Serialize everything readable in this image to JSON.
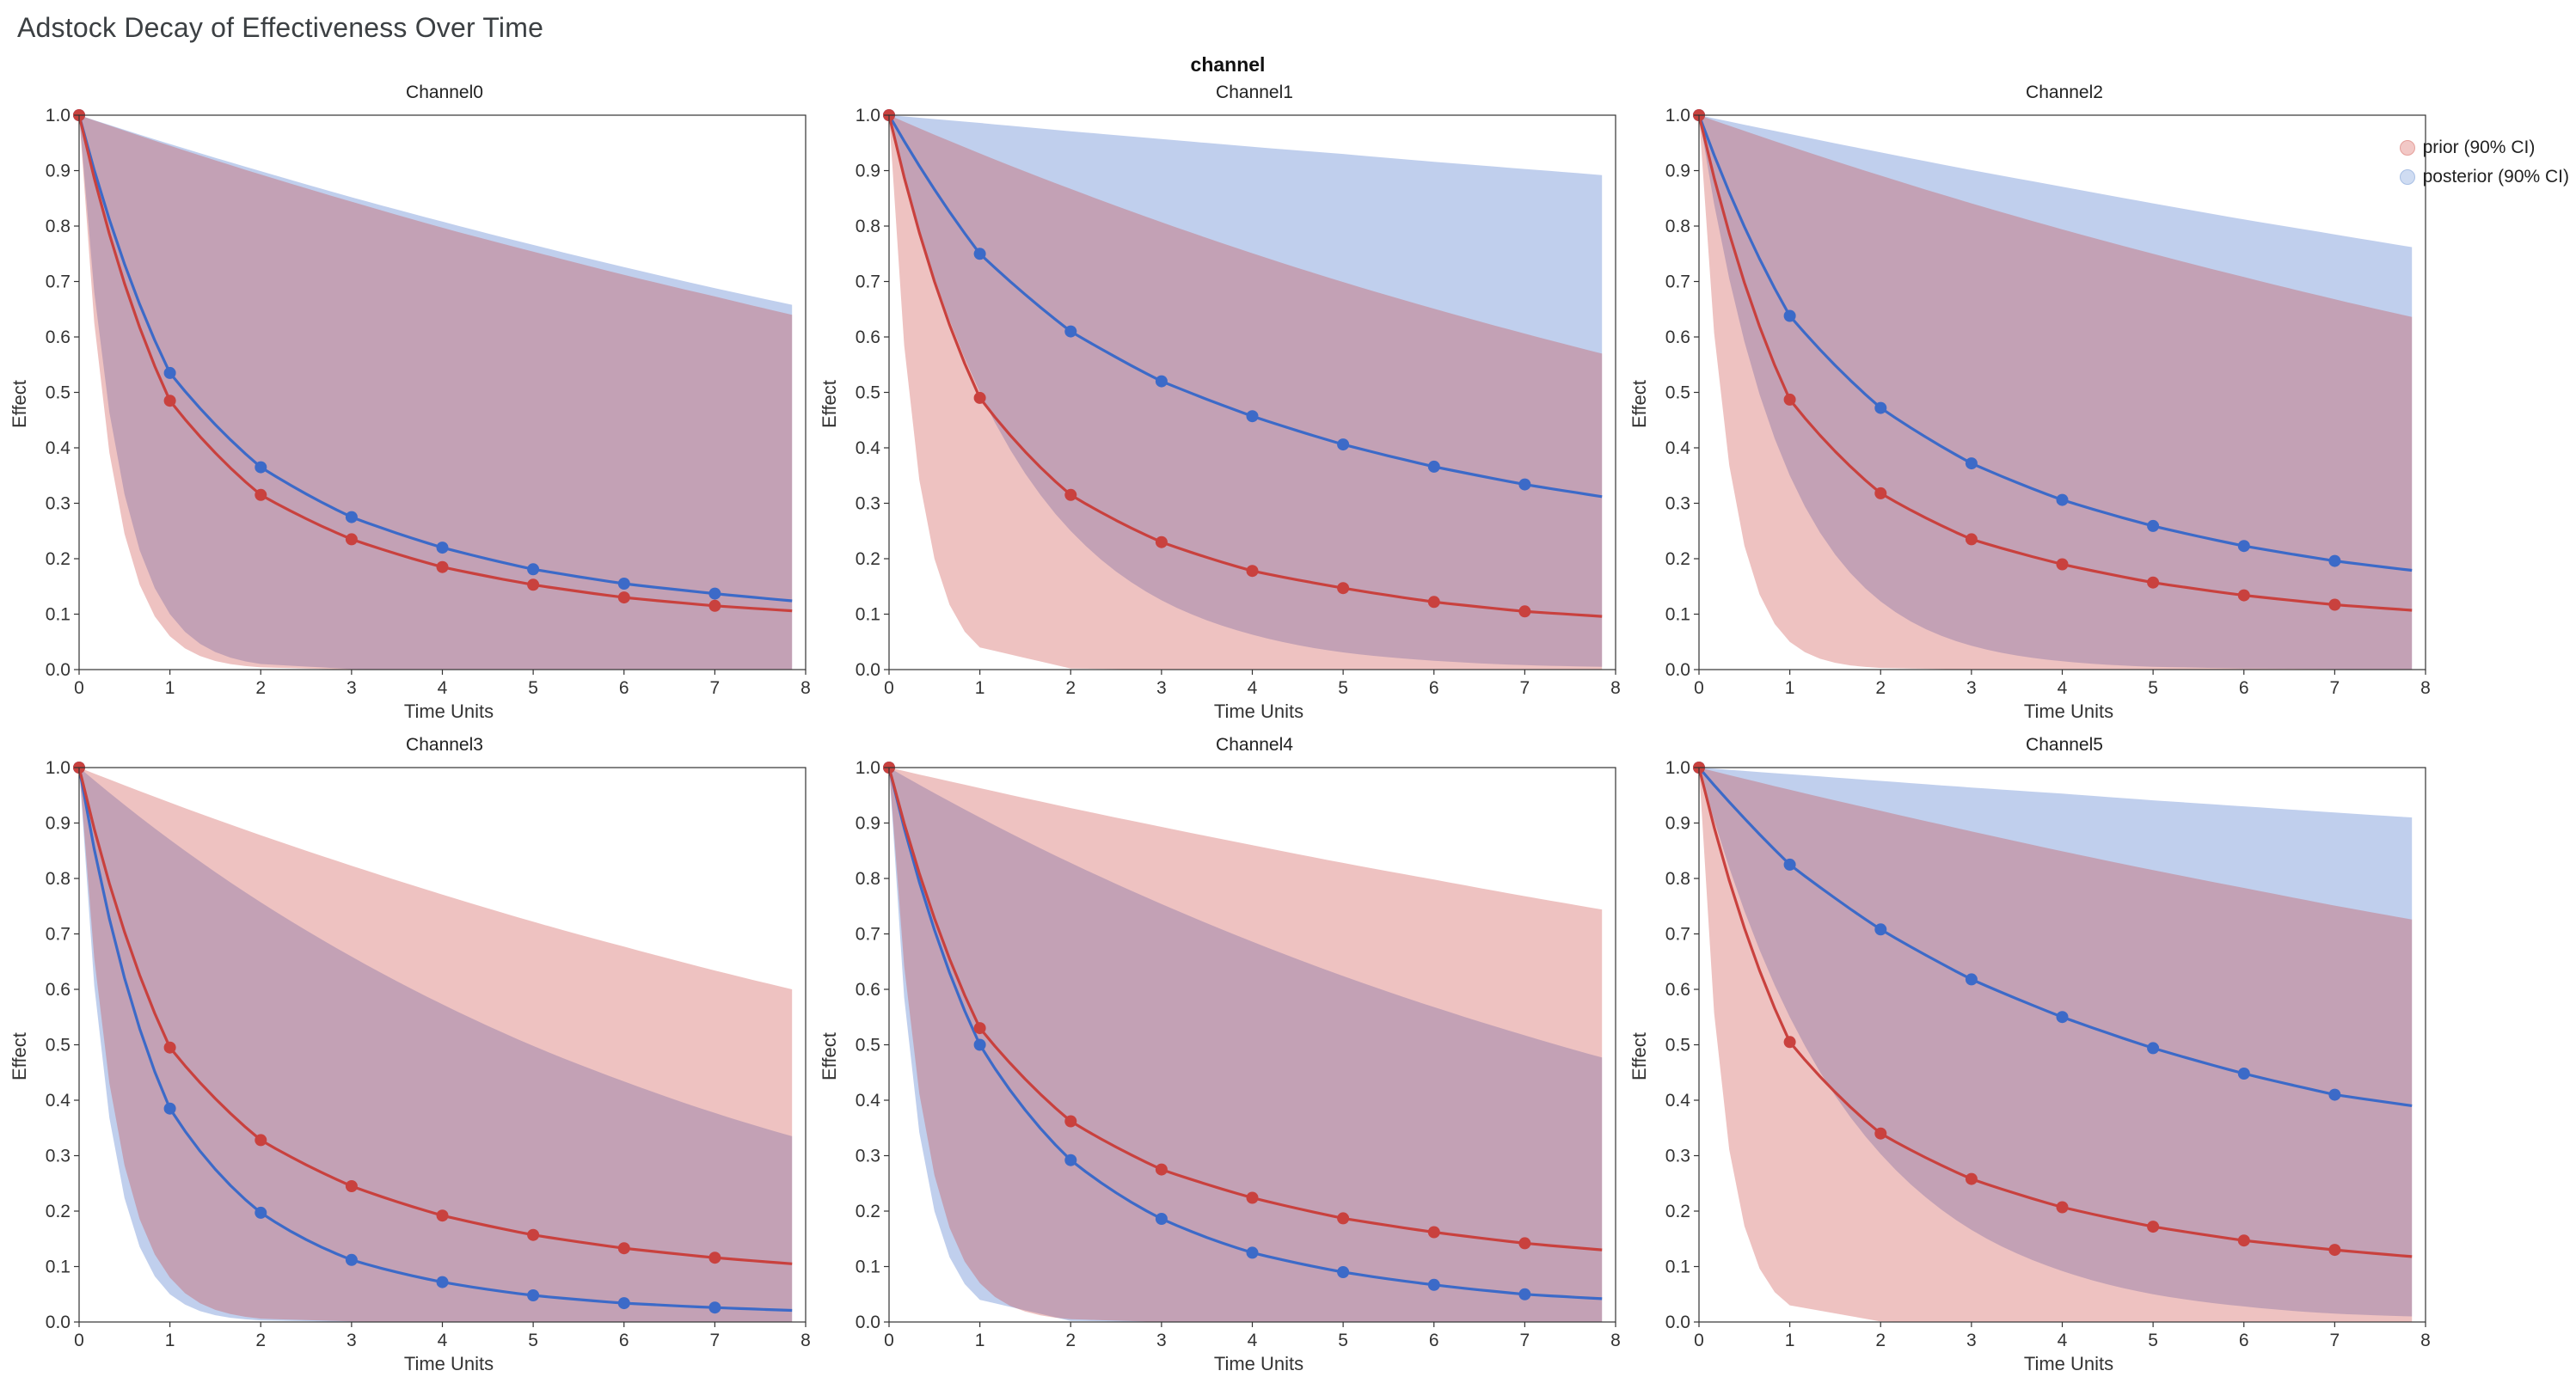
{
  "page": {
    "title": "Adstock Decay of Effectiveness Over Time",
    "facet_label": "channel"
  },
  "axes": {
    "x_label": "Time Units",
    "y_label": "Effect",
    "x_ticks": [
      0,
      1,
      2,
      3,
      4,
      5,
      6,
      7,
      8
    ],
    "y_ticks": [
      "0.0",
      "0.1",
      "0.2",
      "0.3",
      "0.4",
      "0.5",
      "0.6",
      "0.7",
      "0.8",
      "0.9",
      "1.0"
    ],
    "x_max": 8,
    "y_min": 0,
    "y_max": 1
  },
  "legend": {
    "items": [
      {
        "label": "prior (90% CI)",
        "fill": "#f2c8c6",
        "ring": "#e5a09b"
      },
      {
        "label": "posterior (90% CI)",
        "fill": "#cfdcf2",
        "ring": "#a8bfe4"
      }
    ]
  },
  "style": {
    "prior_line": "#c9413e",
    "posterior_line": "#3c6ac8",
    "fill_opacity": 0.32,
    "axis_color": "#333333",
    "frame_color": "#333333"
  },
  "chart_data": {
    "type": "line",
    "title": "Adstock Decay of Effectiveness Over Time",
    "xlabel": "Time Units",
    "ylabel": "Effect",
    "xlim": [
      0,
      8
    ],
    "ylim": [
      0,
      1
    ],
    "grid": false,
    "legend_position": "top-right",
    "x": [
      0,
      1,
      2,
      3,
      4,
      5,
      6,
      7,
      7.85
    ],
    "marker_points": 8,
    "channels": [
      {
        "name": "Channel0",
        "prior": {
          "mean": [
            1,
            0.485,
            0.315,
            0.235,
            0.185,
            0.153,
            0.13,
            0.115,
            0.106
          ],
          "upper": [
            1,
            0.945,
            0.893,
            0.844,
            0.797,
            0.754,
            0.712,
            0.673,
            0.64
          ],
          "lower": [
            1,
            0.06,
            0.004,
            0,
            0,
            0,
            0,
            0,
            0
          ]
        },
        "posterior": {
          "mean": [
            1,
            0.535,
            0.365,
            0.275,
            0.22,
            0.181,
            0.155,
            0.137,
            0.124
          ],
          "upper": [
            1,
            0.948,
            0.899,
            0.852,
            0.808,
            0.766,
            0.726,
            0.688,
            0.658
          ],
          "lower": [
            1,
            0.1,
            0.01,
            0.001,
            0,
            0,
            0,
            0,
            0
          ]
        }
      },
      {
        "name": "Channel1",
        "prior": {
          "mean": [
            1,
            0.49,
            0.315,
            0.23,
            0.178,
            0.147,
            0.122,
            0.105,
            0.096
          ],
          "upper": [
            1,
            0.931,
            0.867,
            0.807,
            0.751,
            0.699,
            0.651,
            0.606,
            0.57
          ],
          "lower": [
            1,
            0.04,
            0.002,
            0,
            0,
            0,
            0,
            0,
            0
          ]
        },
        "posterior": {
          "mean": [
            1,
            0.75,
            0.61,
            0.52,
            0.457,
            0.406,
            0.366,
            0.334,
            0.312
          ],
          "upper": [
            1,
            0.986,
            0.971,
            0.957,
            0.943,
            0.93,
            0.916,
            0.903,
            0.892
          ],
          "lower": [
            1,
            0.5,
            0.25,
            0.125,
            0.063,
            0.031,
            0.016,
            0.008,
            0.005
          ]
        }
      },
      {
        "name": "Channel2",
        "prior": {
          "mean": [
            1,
            0.487,
            0.318,
            0.235,
            0.19,
            0.157,
            0.134,
            0.117,
            0.107
          ],
          "upper": [
            1,
            0.944,
            0.891,
            0.841,
            0.794,
            0.75,
            0.708,
            0.668,
            0.636
          ],
          "lower": [
            1,
            0.05,
            0.003,
            0,
            0,
            0,
            0,
            0,
            0
          ]
        },
        "posterior": {
          "mean": [
            1,
            0.638,
            0.472,
            0.372,
            0.306,
            0.259,
            0.223,
            0.196,
            0.179
          ],
          "upper": [
            1,
            0.966,
            0.933,
            0.901,
            0.871,
            0.841,
            0.812,
            0.785,
            0.762
          ],
          "lower": [
            1,
            0.35,
            0.123,
            0.043,
            0.015,
            0.005,
            0.002,
            0.001,
            0
          ]
        }
      },
      {
        "name": "Channel3",
        "prior": {
          "mean": [
            1,
            0.495,
            0.328,
            0.245,
            0.192,
            0.157,
            0.133,
            0.116,
            0.105
          ],
          "upper": [
            1,
            0.937,
            0.878,
            0.823,
            0.771,
            0.722,
            0.677,
            0.634,
            0.6
          ],
          "lower": [
            1,
            0.08,
            0.006,
            0.001,
            0,
            0,
            0,
            0,
            0
          ]
        },
        "posterior": {
          "mean": [
            1,
            0.385,
            0.197,
            0.112,
            0.072,
            0.048,
            0.034,
            0.026,
            0.021
          ],
          "upper": [
            1,
            0.87,
            0.757,
            0.659,
            0.573,
            0.498,
            0.434,
            0.377,
            0.335
          ],
          "lower": [
            1,
            0.05,
            0.003,
            0,
            0,
            0,
            0,
            0,
            0
          ]
        }
      },
      {
        "name": "Channel4",
        "prior": {
          "mean": [
            1,
            0.53,
            0.362,
            0.275,
            0.224,
            0.187,
            0.162,
            0.142,
            0.13
          ],
          "upper": [
            1,
            0.963,
            0.927,
            0.893,
            0.86,
            0.828,
            0.798,
            0.768,
            0.744
          ],
          "lower": [
            1,
            0.07,
            0.005,
            0,
            0,
            0,
            0,
            0,
            0
          ]
        },
        "posterior": {
          "mean": [
            1,
            0.5,
            0.292,
            0.186,
            0.125,
            0.09,
            0.067,
            0.05,
            0.042
          ],
          "upper": [
            1,
            0.91,
            0.828,
            0.754,
            0.686,
            0.624,
            0.568,
            0.517,
            0.477
          ],
          "lower": [
            1,
            0.04,
            0.002,
            0,
            0,
            0,
            0,
            0,
            0
          ]
        }
      },
      {
        "name": "Channel5",
        "prior": {
          "mean": [
            1,
            0.505,
            0.34,
            0.258,
            0.207,
            0.172,
            0.147,
            0.13,
            0.118
          ],
          "upper": [
            1,
            0.96,
            0.922,
            0.885,
            0.849,
            0.815,
            0.783,
            0.751,
            0.726
          ],
          "lower": [
            1,
            0.03,
            0.001,
            0,
            0,
            0,
            0,
            0,
            0
          ]
        },
        "posterior": {
          "mean": [
            1,
            0.825,
            0.708,
            0.618,
            0.55,
            0.494,
            0.448,
            0.41,
            0.39
          ],
          "upper": [
            1,
            0.988,
            0.976,
            0.964,
            0.953,
            0.941,
            0.93,
            0.919,
            0.91
          ],
          "lower": [
            1,
            0.55,
            0.303,
            0.166,
            0.092,
            0.05,
            0.028,
            0.015,
            0.01
          ]
        }
      }
    ]
  }
}
